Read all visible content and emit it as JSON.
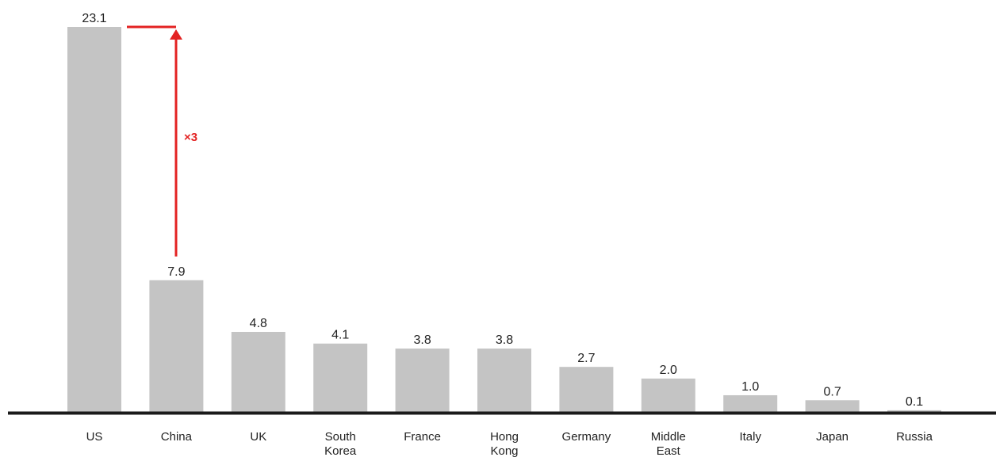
{
  "chart_data": {
    "type": "bar",
    "categories": [
      [
        "US"
      ],
      [
        "China"
      ],
      [
        "UK"
      ],
      [
        "South",
        "Korea"
      ],
      [
        "France"
      ],
      [
        "Hong",
        "Kong"
      ],
      [
        "Germany"
      ],
      [
        "Middle",
        "East"
      ],
      [
        "Italy"
      ],
      [
        "Japan"
      ],
      [
        "Russia"
      ]
    ],
    "values": [
      23.1,
      7.9,
      4.8,
      4.1,
      3.8,
      3.8,
      2.7,
      2.0,
      1.0,
      0.7,
      0.1
    ],
    "value_labels": [
      "23.1",
      "7.9",
      "4.8",
      "4.1",
      "3.8",
      "3.8",
      "2.7",
      "2.0",
      "1.0",
      "0.7",
      "0.1"
    ],
    "ylim": [
      0,
      23.1
    ],
    "grid": false,
    "legend": "none",
    "colors": {
      "bar": "#c4c4c4",
      "axis": "#1a1a1a",
      "annotation": "#e32222"
    },
    "annotation": {
      "text": "×3",
      "from_category": "China",
      "to_category": "US"
    }
  }
}
